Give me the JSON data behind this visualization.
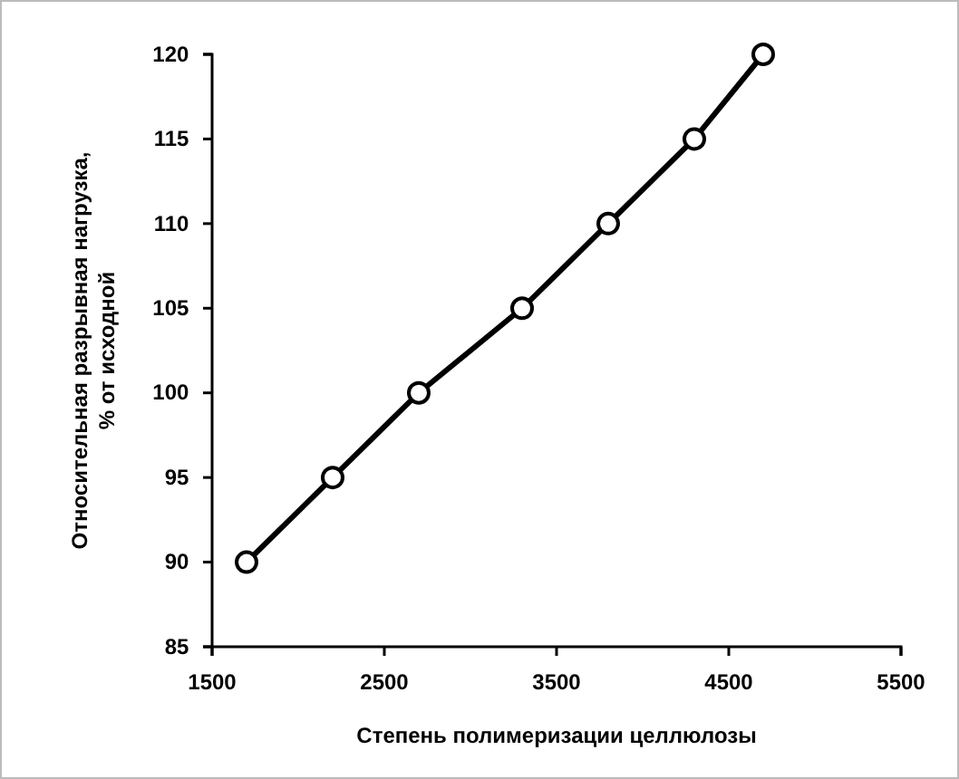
{
  "chart_data": {
    "type": "line",
    "xlabel": "Степень полимеризации целлюлозы",
    "ylabel": "Относительная разрывная нагрузка,\n% от исходной",
    "x": [
      1700,
      2200,
      2700,
      3300,
      3800,
      4300,
      4700
    ],
    "series": [
      {
        "color": "#000000",
        "values": [
          90,
          95,
          100,
          105,
          110,
          115,
          120
        ]
      }
    ],
    "xlim": [
      1500,
      5500
    ],
    "xticks": [
      1500,
      2500,
      3500,
      4500,
      5500
    ],
    "ylim": [
      85,
      120
    ],
    "yticks": [
      85,
      90,
      95,
      100,
      105,
      110,
      115,
      120
    ],
    "marker": "circle",
    "line_style": "solid"
  }
}
